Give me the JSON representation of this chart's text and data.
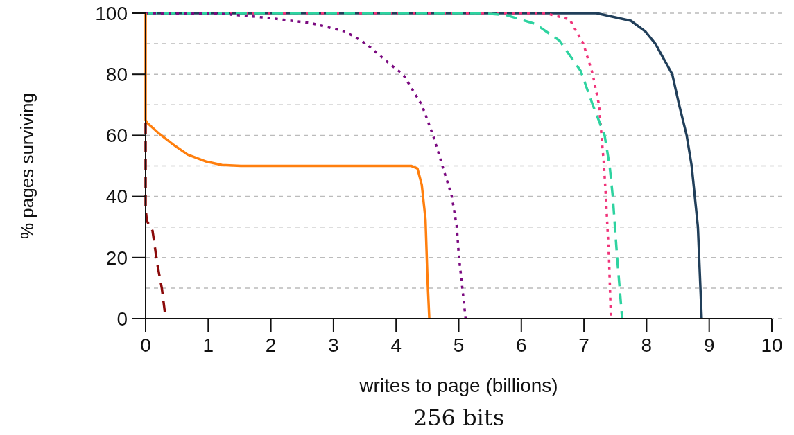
{
  "chart_data": {
    "type": "line",
    "title": "256 bits",
    "xlabel": "writes to page (billions)",
    "ylabel": "% pages surviving",
    "xlim": [
      0,
      10
    ],
    "xticks": [
      0,
      1,
      2,
      3,
      4,
      5,
      6,
      7,
      8,
      9,
      10
    ],
    "ylim": [
      0,
      100
    ],
    "yticks": [
      0,
      {
        "value": 10,
        "label": null
      },
      20,
      {
        "value": 30,
        "label": null
      },
      40,
      {
        "value": 50,
        "label": null
      },
      60,
      {
        "value": 70,
        "label": null
      },
      80,
      {
        "value": 90,
        "label": null
      },
      100
    ],
    "grid": "y",
    "series": [
      {
        "color": "#213f5a",
        "line_style": "solid",
        "x": [
          0,
          7.2,
          7.75,
          7.98,
          8.14,
          8.41,
          8.52,
          8.64,
          8.72,
          8.77,
          8.82,
          8.86,
          8.88
        ],
        "values": [
          100,
          100,
          97.5,
          94,
          90,
          80,
          70,
          60,
          50,
          40,
          30,
          10,
          0
        ]
      },
      {
        "color": "#f0347a",
        "line_style": "dotted",
        "x": [
          0,
          6.38,
          6.77,
          6.99,
          7.14,
          7.24,
          7.28,
          7.32,
          7.35,
          7.4,
          7.43
        ],
        "values": [
          100,
          100,
          98,
          90,
          80,
          70,
          60,
          50,
          40,
          20,
          0
        ]
      },
      {
        "color": "#2ed3a0",
        "line_style": "dashed",
        "x": [
          0,
          5.39,
          5.77,
          6.22,
          6.61,
          6.95,
          7.14,
          7.33,
          7.41,
          7.46,
          7.53,
          7.61
        ],
        "values": [
          100,
          100,
          99.3,
          96.5,
          91,
          81,
          70,
          60,
          50,
          40,
          20,
          0
        ]
      },
      {
        "color": "#7b0a80",
        "line_style": "dotted",
        "x": [
          0,
          1.22,
          1.89,
          2.63,
          3.19,
          3.52,
          3.92,
          4.11,
          4.41,
          4.59,
          4.74,
          4.89,
          4.97,
          5.0,
          5.11
        ],
        "values": [
          100,
          99.8,
          98.6,
          96.8,
          94,
          90,
          83,
          80,
          70,
          60,
          50,
          40,
          30,
          21,
          0
        ]
      },
      {
        "color": "#ff7f0e",
        "line_style": "solid",
        "x": [
          0,
          0.0,
          0.03,
          0.22,
          0.44,
          0.67,
          0.97,
          1.22,
          1.52,
          4.24,
          4.34,
          4.41,
          4.47,
          4.5,
          4.53
        ],
        "values": [
          100,
          65,
          64,
          60.5,
          57,
          53.7,
          51.4,
          50.3,
          50,
          50,
          49.2,
          43.8,
          32.4,
          13.6,
          0
        ]
      },
      {
        "color": "#8b0a0a",
        "line_style": "dashed",
        "x": [
          0,
          0.0,
          0.02,
          0.11,
          0.19,
          0.26,
          0.32
        ],
        "values": [
          64,
          36,
          32,
          28.8,
          17.5,
          9.8,
          0
        ]
      }
    ]
  }
}
